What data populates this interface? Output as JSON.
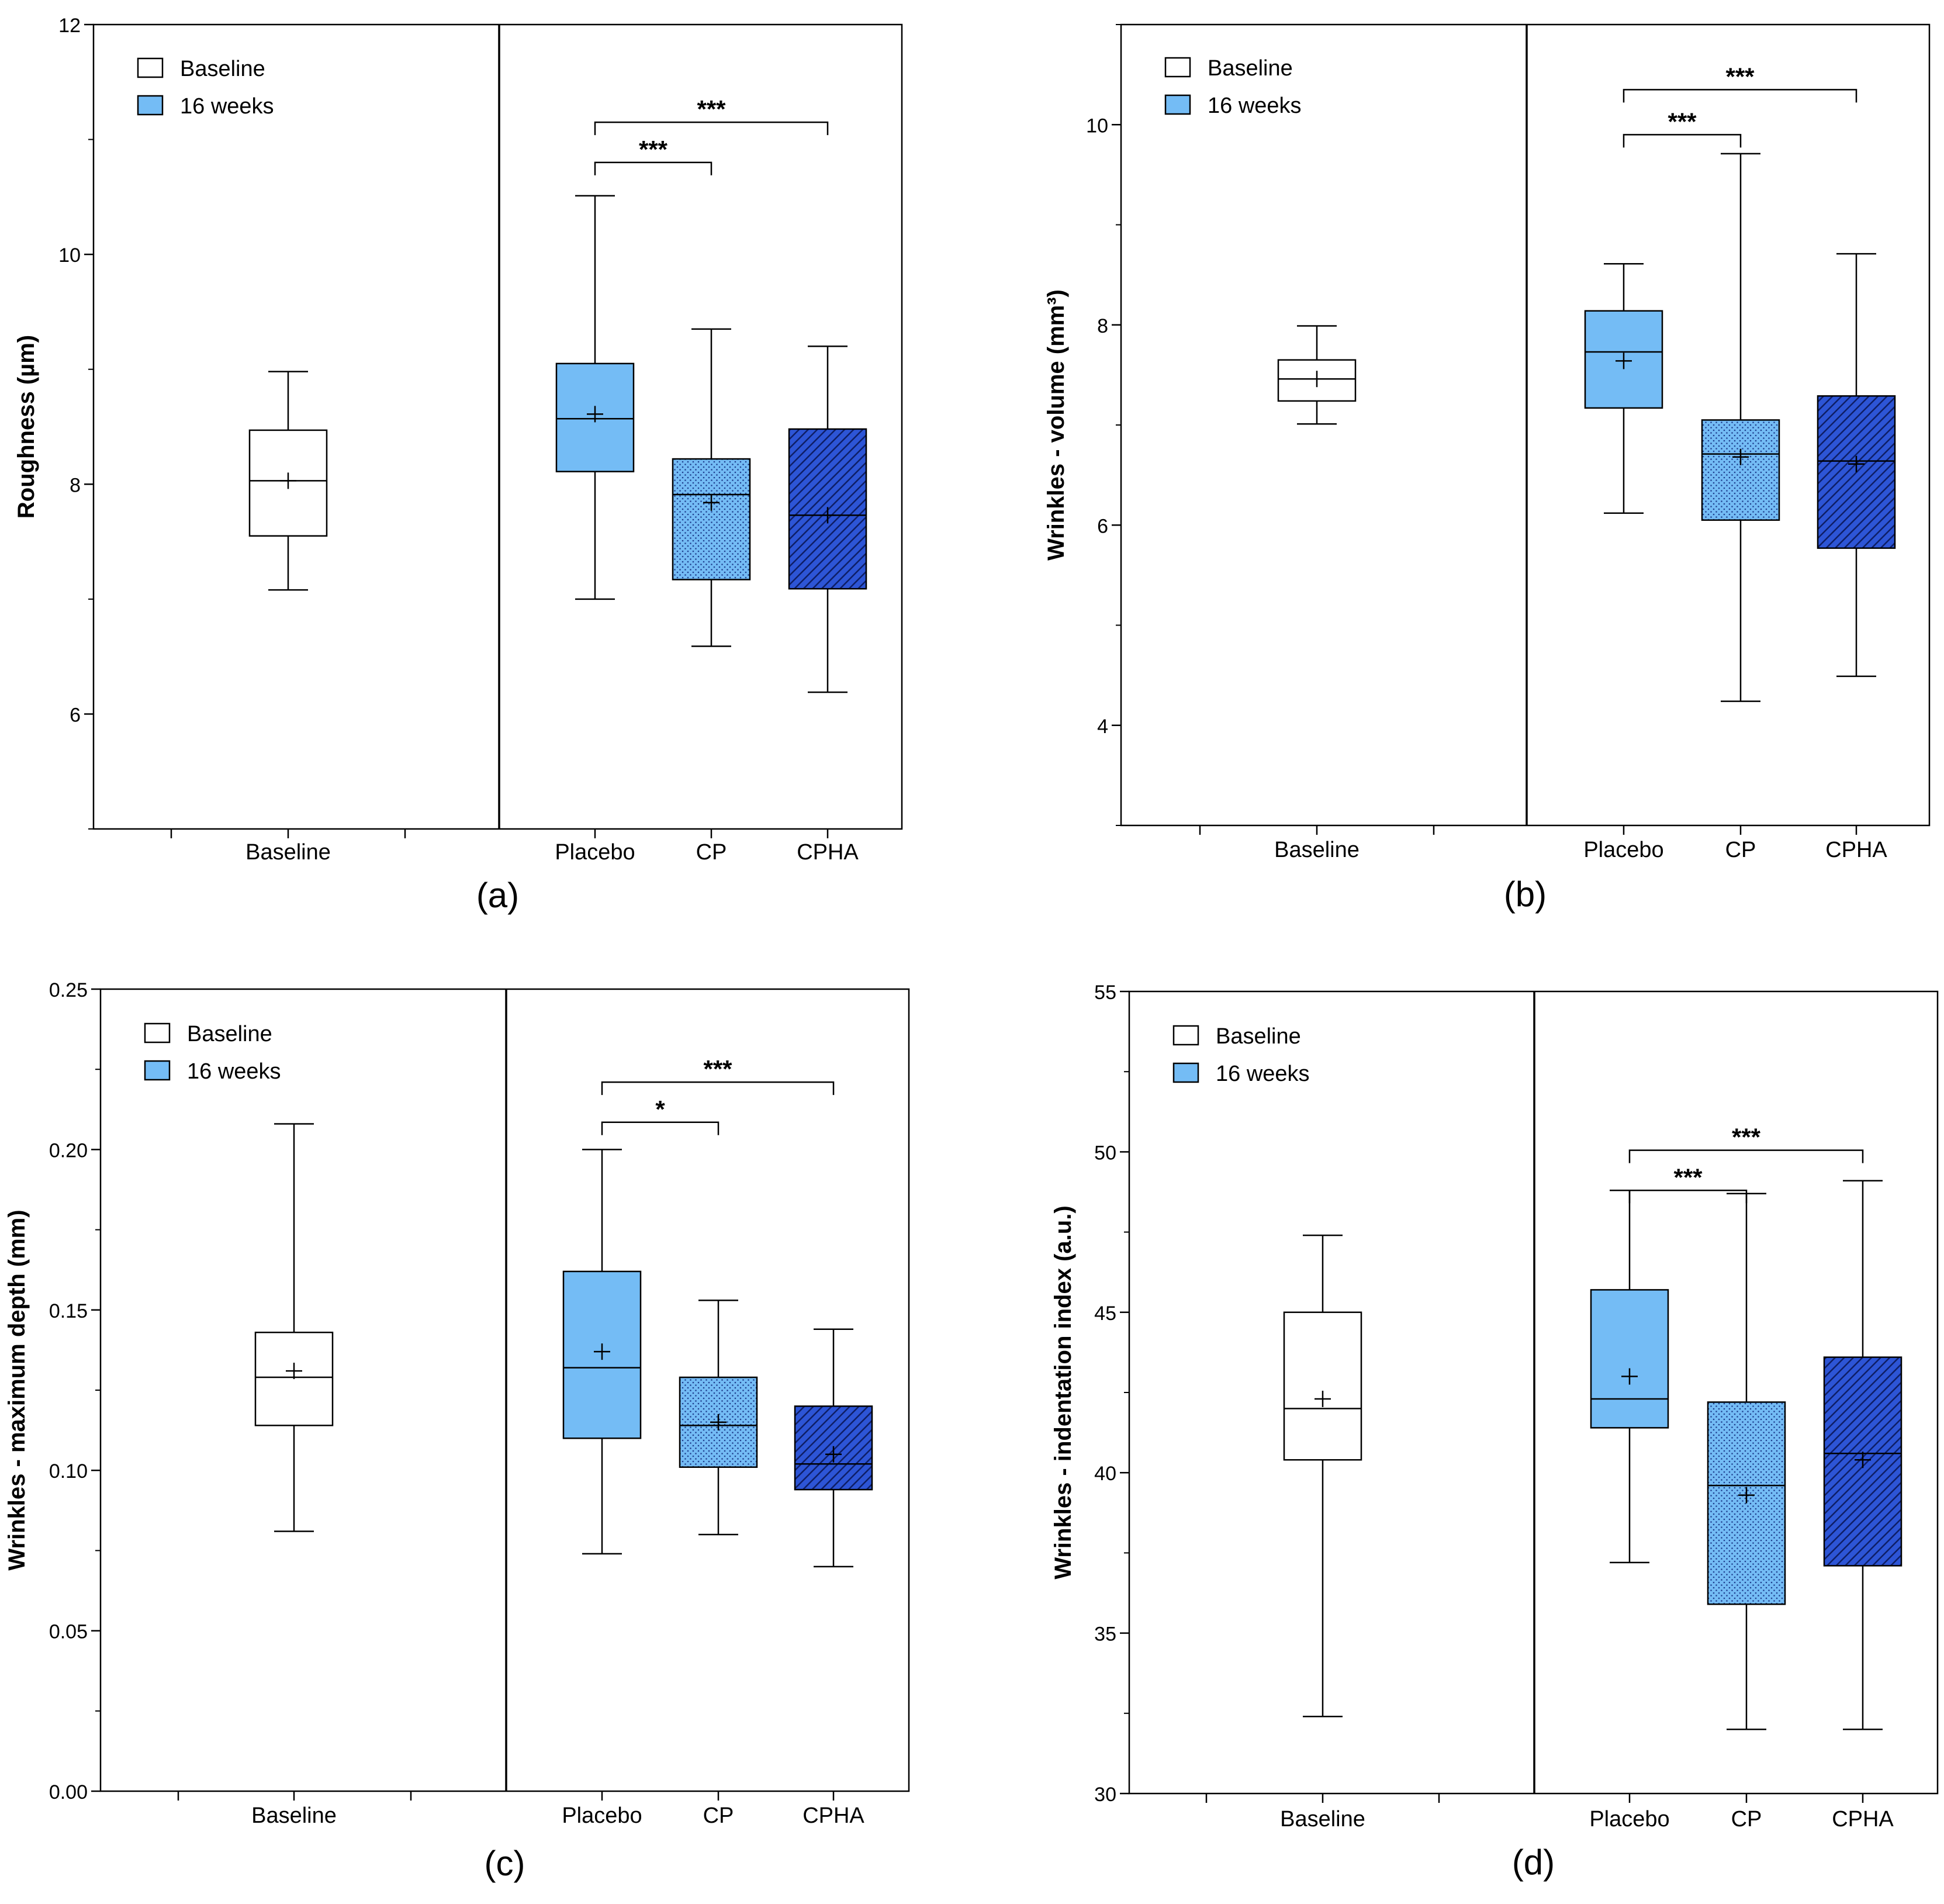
{
  "legend": {
    "baseline_label": "Baseline",
    "weeks_label": "16 weeks"
  },
  "colors": {
    "baseline_fill": "#ffffff",
    "placebo_fill": "#74bcf5",
    "cp_fill": "#74bcf5",
    "cpha_fill": "#2d55d6",
    "stroke": "#000000",
    "dots": "#1f3f8f",
    "hatch_line": "#0e1e66"
  },
  "chart_data": [
    {
      "type": "boxplot",
      "panel_label": "(a)",
      "ylabel": "Roughness (µm)",
      "ylim": [
        5,
        12
      ],
      "yticks": [
        6,
        8,
        10,
        12
      ],
      "categories": [
        "Baseline",
        "Placebo",
        "CP",
        "CPHA"
      ],
      "boxes": [
        {
          "name": "Baseline",
          "min": 7.08,
          "q1": 7.55,
          "median": 8.03,
          "q3": 8.47,
          "max": 8.98,
          "mean": 8.03
        },
        {
          "name": "Placebo",
          "min": 7.0,
          "q1": 8.11,
          "median": 8.57,
          "q3": 9.05,
          "max": 10.51,
          "mean": 8.61
        },
        {
          "name": "CP",
          "min": 6.59,
          "q1": 7.17,
          "median": 7.91,
          "q3": 8.22,
          "max": 9.35,
          "mean": 7.84
        },
        {
          "name": "CPHA",
          "min": 6.19,
          "q1": 7.09,
          "median": 7.73,
          "q3": 8.48,
          "max": 9.2,
          "mean": 7.73
        }
      ],
      "significance": [
        {
          "from": "Placebo",
          "to": "CP",
          "label": "***",
          "y": 10.8
        },
        {
          "from": "Placebo",
          "to": "CPHA",
          "label": "***",
          "y": 11.15
        }
      ]
    },
    {
      "type": "boxplot",
      "panel_label": "(b)",
      "ylabel": "Wrinkles - volume (mm³)",
      "ylim": [
        3,
        11
      ],
      "yticks": [
        4,
        6,
        8,
        10
      ],
      "categories": [
        "Baseline",
        "Placebo",
        "CP",
        "CPHA"
      ],
      "boxes": [
        {
          "name": "Baseline",
          "min": 7.01,
          "q1": 7.24,
          "median": 7.46,
          "q3": 7.65,
          "max": 7.99,
          "mean": 7.46
        },
        {
          "name": "Placebo",
          "min": 6.12,
          "q1": 7.17,
          "median": 7.73,
          "q3": 8.14,
          "max": 8.61,
          "mean": 7.64
        },
        {
          "name": "CP",
          "min": 4.24,
          "q1": 6.05,
          "median": 6.71,
          "q3": 7.05,
          "max": 9.71,
          "mean": 6.68
        },
        {
          "name": "CPHA",
          "min": 4.49,
          "q1": 5.77,
          "median": 6.64,
          "q3": 7.29,
          "max": 8.71,
          "mean": 6.61
        }
      ],
      "significance": [
        {
          "from": "Placebo",
          "to": "CP",
          "label": "***",
          "y": 9.9
        },
        {
          "from": "Placebo",
          "to": "CPHA",
          "label": "***",
          "y": 10.35
        }
      ]
    },
    {
      "type": "boxplot",
      "panel_label": "(c)",
      "ylabel": "Wrinkles - maximum depth (mm)",
      "ylim": [
        0,
        0.25
      ],
      "yticks": [
        0,
        0.05,
        0.1,
        0.15,
        0.2,
        0.25
      ],
      "ytick_labels": [
        "0.00",
        "0.05",
        "0.10",
        "0.15",
        "0.20",
        "0.25"
      ],
      "categories": [
        "Baseline",
        "Placebo",
        "CP",
        "CPHA"
      ],
      "boxes": [
        {
          "name": "Baseline",
          "min": 0.081,
          "q1": 0.114,
          "median": 0.129,
          "q3": 0.143,
          "max": 0.208,
          "mean": 0.131
        },
        {
          "name": "Placebo",
          "min": 0.074,
          "q1": 0.11,
          "median": 0.132,
          "q3": 0.162,
          "max": 0.2,
          "mean": 0.137
        },
        {
          "name": "CP",
          "min": 0.08,
          "q1": 0.101,
          "median": 0.114,
          "q3": 0.129,
          "max": 0.153,
          "mean": 0.115
        },
        {
          "name": "CPHA",
          "min": 0.07,
          "q1": 0.094,
          "median": 0.102,
          "q3": 0.12,
          "max": 0.144,
          "mean": 0.105
        }
      ],
      "significance": [
        {
          "from": "Placebo",
          "to": "CP",
          "label": "*",
          "y": 0.2085
        },
        {
          "from": "Placebo",
          "to": "CPHA",
          "label": "***",
          "y": 0.221
        }
      ]
    },
    {
      "type": "boxplot",
      "panel_label": "(d)",
      "ylabel": "Wrinkles - indentation index (a.u.)",
      "ylim": [
        30,
        55
      ],
      "yticks": [
        30,
        35,
        40,
        45,
        50,
        55
      ],
      "categories": [
        "Baseline",
        "Placebo",
        "CP",
        "CPHA"
      ],
      "boxes": [
        {
          "name": "Baseline",
          "min": 32.4,
          "q1": 40.4,
          "median": 42.0,
          "q3": 45.0,
          "max": 47.4,
          "mean": 42.3
        },
        {
          "name": "Placebo",
          "min": 37.2,
          "q1": 41.4,
          "median": 42.3,
          "q3": 45.7,
          "max": 48.8,
          "mean": 43.0
        },
        {
          "name": "CP",
          "min": 32.0,
          "q1": 35.9,
          "median": 39.6,
          "q3": 42.2,
          "max": 48.7,
          "mean": 39.3
        },
        {
          "name": "CPHA",
          "min": 32.0,
          "q1": 37.1,
          "median": 40.6,
          "q3": 43.6,
          "max": 49.1,
          "mean": 40.4
        }
      ],
      "significance": [
        {
          "from": "Placebo",
          "to": "CP",
          "label": "***",
          "y": 48.8
        },
        {
          "from": "Placebo",
          "to": "CPHA",
          "label": "***",
          "y": 50.05
        }
      ]
    }
  ]
}
